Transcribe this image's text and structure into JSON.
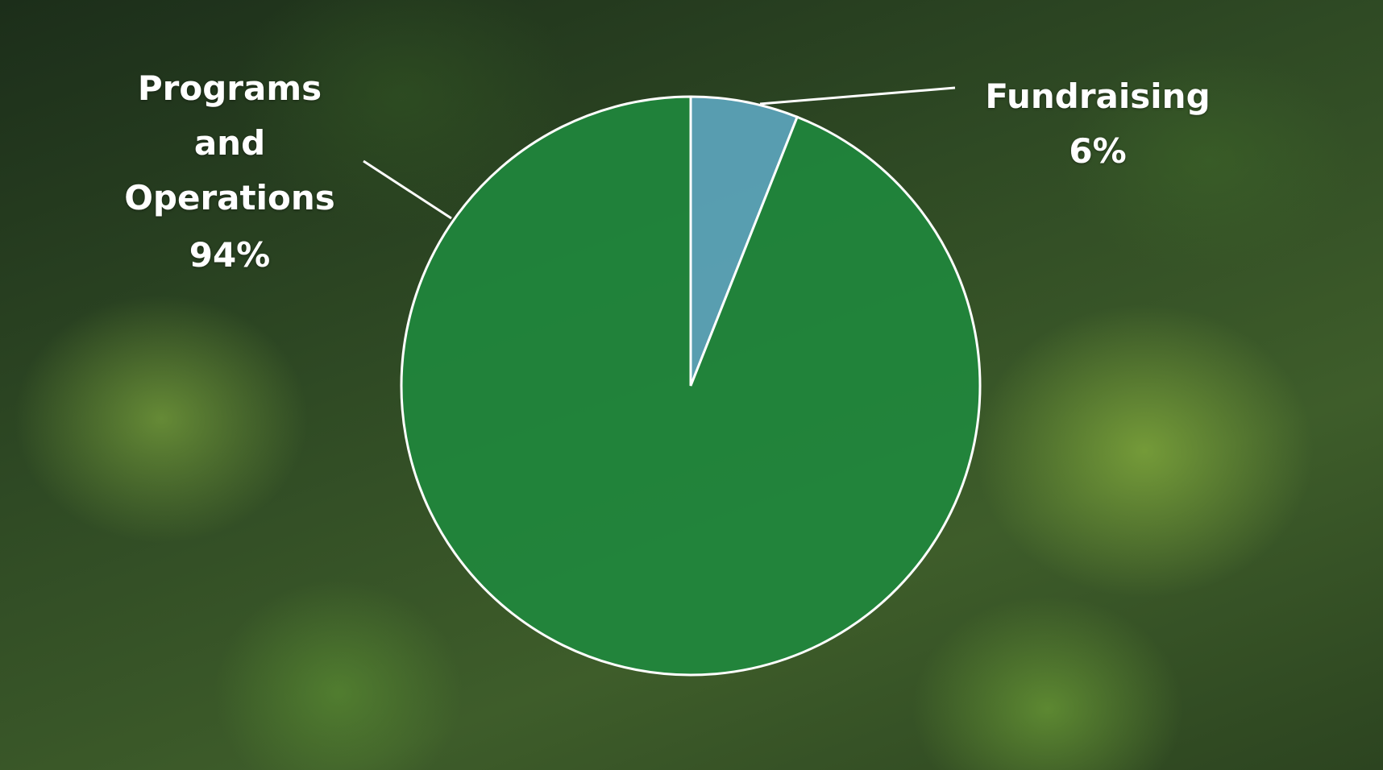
{
  "chart_data": {
    "type": "pie",
    "categories": [
      "Fundraising",
      "Programs and Operations"
    ],
    "values": [
      6,
      94
    ],
    "value_labels": [
      "6%",
      "94%"
    ],
    "colors": [
      "#5faac4",
      "#1f8a3e"
    ]
  }
}
